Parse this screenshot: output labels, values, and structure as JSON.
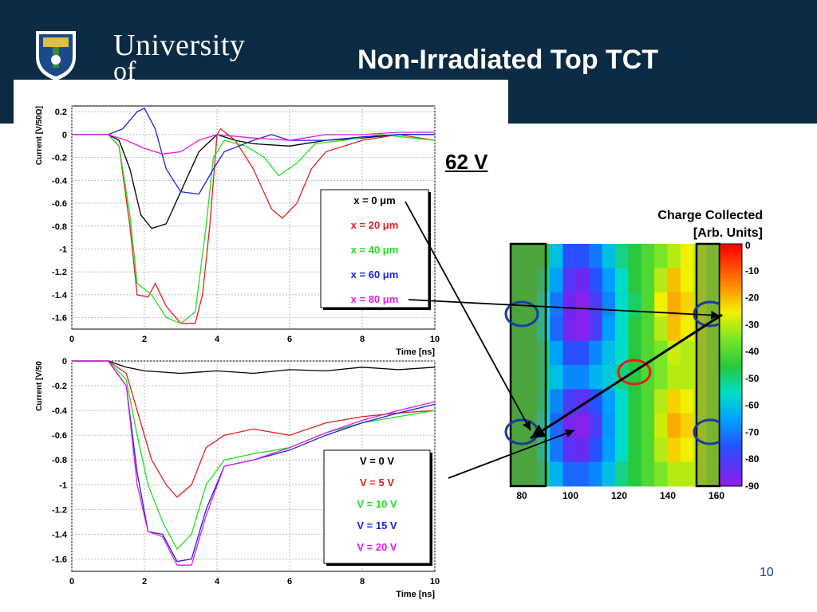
{
  "slide": {
    "title": "Non-Irradiated Top TCT",
    "voltage_label": "62 V",
    "page_number": "10",
    "logo": {
      "line1": "University",
      "line2": "of Glasgow"
    },
    "colors": {
      "header": "#0b2a44",
      "accent": "#1a3a8a"
    }
  },
  "chart_data": [
    {
      "type": "line",
      "ylabel": "Current [V/50Ω]",
      "xlabel": "Time [ns]",
      "xlim": [
        0,
        10
      ],
      "ylim": [
        -1.7,
        0.25
      ],
      "x_ticks": [
        "0",
        "2",
        "4",
        "6",
        "8",
        "10"
      ],
      "y_ticks": [
        "0.2",
        "0",
        "-0.2",
        "-0.4",
        "-0.6",
        "-0.8",
        "-1",
        "-1.2",
        "-1.4",
        "-1.6"
      ],
      "series": [
        {
          "name": "x = 0  μm",
          "color": "#000000",
          "points": [
            [
              0,
              0
            ],
            [
              1,
              0
            ],
            [
              1.3,
              -0.05
            ],
            [
              1.6,
              -0.3
            ],
            [
              1.9,
              -0.7
            ],
            [
              2.2,
              -0.82
            ],
            [
              2.6,
              -0.78
            ],
            [
              3,
              -0.5
            ],
            [
              3.5,
              -0.15
            ],
            [
              4,
              0
            ],
            [
              4.5,
              -0.05
            ],
            [
              5,
              -0.08
            ],
            [
              6,
              -0.1
            ],
            [
              7,
              -0.05
            ],
            [
              8,
              -0.03
            ],
            [
              9,
              0
            ],
            [
              10,
              0
            ]
          ]
        },
        {
          "name": "x = 20  μm",
          "color": "#e0201e",
          "points": [
            [
              0,
              0
            ],
            [
              1,
              0
            ],
            [
              1.3,
              -0.1
            ],
            [
              1.6,
              -0.8
            ],
            [
              1.8,
              -1.4
            ],
            [
              2.1,
              -1.42
            ],
            [
              2.3,
              -1.3
            ],
            [
              2.6,
              -1.5
            ],
            [
              3,
              -1.65
            ],
            [
              3.4,
              -1.65
            ],
            [
              3.6,
              -1.4
            ],
            [
              3.8,
              -0.8
            ],
            [
              4,
              0
            ],
            [
              4.1,
              0.05
            ],
            [
              4.5,
              -0.05
            ],
            [
              5,
              -0.3
            ],
            [
              5.5,
              -0.65
            ],
            [
              5.8,
              -0.73
            ],
            [
              6.2,
              -0.6
            ],
            [
              6.6,
              -0.3
            ],
            [
              7,
              -0.15
            ],
            [
              8,
              -0.05
            ],
            [
              9,
              0
            ],
            [
              10,
              -0.05
            ]
          ]
        },
        {
          "name": "x = 40  μm",
          "color": "#1ee01e",
          "points": [
            [
              0,
              0
            ],
            [
              1,
              0
            ],
            [
              1.3,
              -0.1
            ],
            [
              1.6,
              -0.7
            ],
            [
              1.8,
              -1.3
            ],
            [
              2.2,
              -1.4
            ],
            [
              2.6,
              -1.6
            ],
            [
              3,
              -1.65
            ],
            [
              3.4,
              -1.55
            ],
            [
              3.7,
              -0.8
            ],
            [
              3.9,
              -0.2
            ],
            [
              4.2,
              -0.05
            ],
            [
              4.8,
              -0.1
            ],
            [
              5.3,
              -0.2
            ],
            [
              5.7,
              -0.36
            ],
            [
              6.2,
              -0.25
            ],
            [
              6.7,
              -0.08
            ],
            [
              7.5,
              -0.05
            ],
            [
              8.5,
              0
            ],
            [
              10,
              -0.05
            ]
          ]
        },
        {
          "name": "x = 60  μm",
          "color": "#1e1ee0",
          "points": [
            [
              0,
              0
            ],
            [
              1,
              0
            ],
            [
              1.4,
              0.05
            ],
            [
              1.8,
              0.2
            ],
            [
              2,
              0.23
            ],
            [
              2.3,
              0.05
            ],
            [
              2.6,
              -0.3
            ],
            [
              3,
              -0.5
            ],
            [
              3.5,
              -0.52
            ],
            [
              3.9,
              -0.3
            ],
            [
              4.2,
              -0.15
            ],
            [
              4.6,
              -0.1
            ],
            [
              5,
              -0.05
            ],
            [
              5.5,
              0
            ],
            [
              6,
              -0.05
            ],
            [
              7,
              -0.05
            ],
            [
              8,
              -0.02
            ],
            [
              9,
              0
            ],
            [
              10,
              0
            ]
          ]
        },
        {
          "name": "x = 80  μm",
          "color": "#e01ee0",
          "points": [
            [
              0,
              0
            ],
            [
              1,
              0
            ],
            [
              1.5,
              -0.05
            ],
            [
              2,
              -0.12
            ],
            [
              2.5,
              -0.17
            ],
            [
              3,
              -0.15
            ],
            [
              3.5,
              -0.05
            ],
            [
              4,
              0
            ],
            [
              5,
              -0.03
            ],
            [
              6,
              -0.05
            ],
            [
              7,
              0
            ],
            [
              8,
              0
            ],
            [
              9,
              0.02
            ],
            [
              10,
              0.02
            ]
          ]
        }
      ]
    },
    {
      "type": "line",
      "ylabel": "Current [V/50",
      "xlabel": "Time [ns]",
      "xlim": [
        0,
        10
      ],
      "ylim": [
        -1.7,
        0
      ],
      "x_ticks": [
        "0",
        "2",
        "4",
        "6",
        "8",
        "10"
      ],
      "y_ticks": [
        "0",
        "-0.2",
        "-0.4",
        "-0.6",
        "-0.8",
        "-1",
        "-1.2",
        "-1.4",
        "-1.6"
      ],
      "series": [
        {
          "name": "V = 0  V",
          "color": "#000000",
          "points": [
            [
              0,
              0
            ],
            [
              1,
              0
            ],
            [
              1.5,
              -0.05
            ],
            [
              2,
              -0.08
            ],
            [
              3,
              -0.1
            ],
            [
              4,
              -0.08
            ],
            [
              5,
              -0.1
            ],
            [
              6,
              -0.07
            ],
            [
              7,
              -0.08
            ],
            [
              8,
              -0.05
            ],
            [
              9,
              -0.07
            ],
            [
              10,
              -0.05
            ]
          ]
        },
        {
          "name": "V = 5  V",
          "color": "#e0201e",
          "points": [
            [
              0,
              0
            ],
            [
              1,
              0
            ],
            [
              1.5,
              -0.1
            ],
            [
              1.8,
              -0.4
            ],
            [
              2.2,
              -0.8
            ],
            [
              2.6,
              -1.0
            ],
            [
              2.9,
              -1.1
            ],
            [
              3.3,
              -1.0
            ],
            [
              3.7,
              -0.7
            ],
            [
              4.2,
              -0.6
            ],
            [
              5,
              -0.55
            ],
            [
              6,
              -0.6
            ],
            [
              7,
              -0.5
            ],
            [
              8,
              -0.45
            ],
            [
              9,
              -0.42
            ],
            [
              10,
              -0.4
            ]
          ]
        },
        {
          "name": "V = 10  V",
          "color": "#1ee01e",
          "points": [
            [
              0,
              0
            ],
            [
              1,
              0
            ],
            [
              1.5,
              -0.15
            ],
            [
              1.8,
              -0.6
            ],
            [
              2.1,
              -1.0
            ],
            [
              2.5,
              -1.3
            ],
            [
              2.9,
              -1.52
            ],
            [
              3.3,
              -1.4
            ],
            [
              3.7,
              -1.0
            ],
            [
              4.2,
              -0.8
            ],
            [
              5,
              -0.75
            ],
            [
              6,
              -0.7
            ],
            [
              7,
              -0.58
            ],
            [
              8,
              -0.5
            ],
            [
              9,
              -0.45
            ],
            [
              10,
              -0.4
            ]
          ]
        },
        {
          "name": "V = 15  V",
          "color": "#1e1ee0",
          "points": [
            [
              0,
              0
            ],
            [
              1,
              0
            ],
            [
              1.5,
              -0.2
            ],
            [
              1.8,
              -0.9
            ],
            [
              2.1,
              -1.38
            ],
            [
              2.5,
              -1.4
            ],
            [
              2.9,
              -1.62
            ],
            [
              3.3,
              -1.6
            ],
            [
              3.7,
              -1.2
            ],
            [
              4.2,
              -0.85
            ],
            [
              5,
              -0.8
            ],
            [
              6,
              -0.72
            ],
            [
              7,
              -0.6
            ],
            [
              8,
              -0.5
            ],
            [
              9,
              -0.42
            ],
            [
              10,
              -0.35
            ]
          ]
        },
        {
          "name": "V = 20  V",
          "color": "#e01ee0",
          "points": [
            [
              0,
              0
            ],
            [
              1,
              0
            ],
            [
              1.5,
              -0.2
            ],
            [
              1.8,
              -1.0
            ],
            [
              2.1,
              -1.38
            ],
            [
              2.5,
              -1.42
            ],
            [
              2.9,
              -1.65
            ],
            [
              3.3,
              -1.65
            ],
            [
              3.7,
              -1.25
            ],
            [
              4.2,
              -0.85
            ],
            [
              5,
              -0.8
            ],
            [
              6,
              -0.7
            ],
            [
              7,
              -0.58
            ],
            [
              8,
              -0.48
            ],
            [
              9,
              -0.4
            ],
            [
              10,
              -0.33
            ]
          ]
        }
      ]
    },
    {
      "type": "heatmap",
      "title": "Charge Collected",
      "subtitle": "[Arb. Units]",
      "x_ticks": [
        "80",
        "100",
        "120",
        "140",
        "160"
      ],
      "scale_ticks": [
        "0",
        "-10",
        "-20",
        "-30",
        "-40",
        "-50",
        "-60",
        "-70",
        "-80",
        "-90"
      ],
      "grid": [
        [
          -45,
          -45,
          -45,
          -60,
          -75,
          -75,
          -70,
          -60,
          -50,
          -45,
          -40,
          -35,
          -30,
          -25,
          -30,
          -35
        ],
        [
          -45,
          -45,
          -50,
          -65,
          -82,
          -85,
          -75,
          -65,
          -55,
          -45,
          -40,
          -30,
          -20,
          -25,
          -30,
          -35
        ],
        [
          -45,
          -45,
          -55,
          -70,
          -85,
          -88,
          -80,
          -68,
          -55,
          -48,
          -40,
          -25,
          -18,
          -22,
          -30,
          -35
        ],
        [
          -45,
          -45,
          -55,
          -72,
          -86,
          -88,
          -80,
          -65,
          -55,
          -45,
          -40,
          -30,
          -20,
          -25,
          -30,
          -35
        ],
        [
          -45,
          -45,
          -50,
          -65,
          -75,
          -75,
          -68,
          -60,
          -55,
          -45,
          -40,
          -35,
          -28,
          -30,
          -30,
          -35
        ],
        [
          -45,
          -45,
          -50,
          -60,
          -68,
          -68,
          -62,
          -58,
          -50,
          -45,
          -40,
          -35,
          -30,
          -30,
          -30,
          -35
        ],
        [
          -45,
          -45,
          -52,
          -68,
          -80,
          -82,
          -75,
          -65,
          -55,
          -45,
          -40,
          -30,
          -22,
          -25,
          -30,
          -35
        ],
        [
          -45,
          -45,
          -55,
          -72,
          -86,
          -88,
          -80,
          -66,
          -55,
          -45,
          -40,
          -28,
          -18,
          -22,
          -30,
          -35
        ],
        [
          -45,
          -45,
          -55,
          -70,
          -82,
          -84,
          -75,
          -65,
          -55,
          -45,
          -40,
          -30,
          -22,
          -25,
          -30,
          -35
        ],
        [
          -45,
          -45,
          -50,
          -62,
          -72,
          -72,
          -68,
          -60,
          -50,
          -45,
          -40,
          -35,
          -30,
          -30,
          -30,
          -35
        ]
      ]
    }
  ]
}
